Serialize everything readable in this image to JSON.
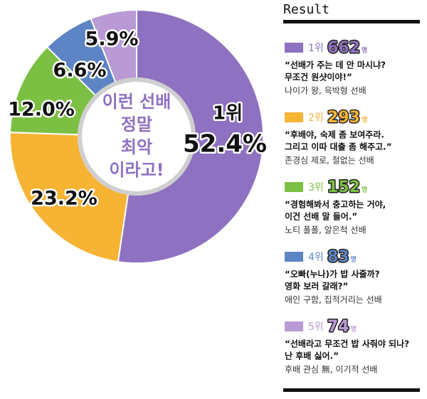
{
  "chart_data": {
    "type": "pie",
    "donut": true,
    "center_text": [
      "이런 선배",
      "정말",
      "최악",
      "이라고!"
    ],
    "categories": [
      "나이가 왕, 윽박형 선배",
      "존경심 제로, 철없는 선배",
      "노티 폴폴, 알은척 선배",
      "애인 구함, 집적거리는 선배",
      "후배 관심 無, 이기적 선배"
    ],
    "values": [
      52.4,
      23.2,
      12,
      6.6,
      5.9
    ],
    "value_labels": [
      "52.4%",
      "23.2%",
      "12.0%",
      "6.6%",
      "5.9%"
    ],
    "colors": [
      "#8e71c0",
      "#f6b334",
      "#7cc043",
      "#5d85c5",
      "#b99ad4"
    ]
  },
  "result": {
    "title": "Result",
    "items": [
      {
        "rank": "1위",
        "count": 662,
        "unit": "명",
        "quote": [
          "“선배가 주는 데 안 마시냐?",
          "무조건 원샷이야!”"
        ]
      },
      {
        "rank": "2위",
        "count": 293,
        "unit": "명",
        "quote": [
          "“후배야, 숙제 좀 보여주라.",
          "그리고 이따 대출 좀 해주고.”"
        ]
      },
      {
        "rank": "3위",
        "count": 152,
        "unit": "명",
        "quote": [
          "“경험해봐서 충고하는 거야,",
          "이건 선배 말 들어.”"
        ]
      },
      {
        "rank": "4위",
        "count": 83,
        "unit": "명",
        "quote": [
          "“오빠(누나)가 밥 사줄까?",
          "영화 보러 갈래?”"
        ]
      },
      {
        "rank": "5위",
        "count": 74,
        "unit": "명",
        "quote": [
          "“선배라고 무조건 밥 사줘야 되나?",
          "난 후배 싫어.”"
        ]
      }
    ]
  }
}
